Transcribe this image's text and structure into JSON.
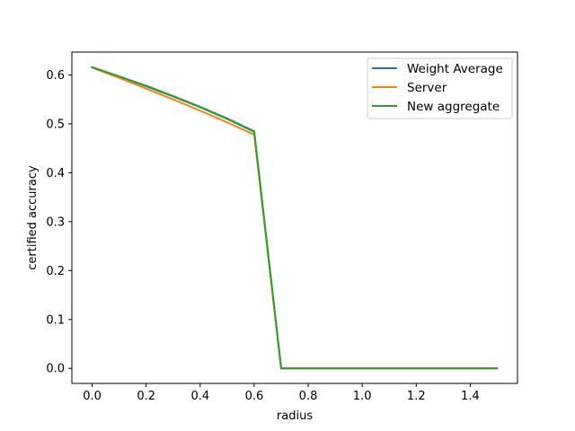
{
  "chart_data": {
    "type": "line",
    "title": "",
    "xlabel": "radius",
    "ylabel": "certified accuracy",
    "xlim": [
      -0.075,
      1.575
    ],
    "ylim": [
      -0.0308,
      0.6468
    ],
    "xticks": [
      0.0,
      0.2,
      0.4,
      0.6,
      0.8,
      1.0,
      1.2,
      1.4
    ],
    "xtick_labels": [
      "0.0",
      "0.2",
      "0.4",
      "0.6",
      "0.8",
      "1.0",
      "1.2",
      "1.4"
    ],
    "yticks": [
      0.0,
      0.1,
      0.2,
      0.3,
      0.4,
      0.5,
      0.6
    ],
    "ytick_labels": [
      "0.0",
      "0.1",
      "0.2",
      "0.3",
      "0.4",
      "0.5",
      "0.6"
    ],
    "grid": false,
    "legend_position": "top-right",
    "series": [
      {
        "name": "Weight Average",
        "color": "#1f77b4",
        "x": [
          0.0,
          0.1,
          0.2,
          0.3,
          0.4,
          0.5,
          0.6,
          0.7,
          0.8,
          0.9,
          1.0,
          1.1,
          1.2,
          1.3,
          1.4,
          1.5
        ],
        "y": [
          0.616,
          0.597,
          0.577,
          0.556,
          0.534,
          0.51,
          0.484,
          0.0,
          0.0,
          0.0,
          0.0,
          0.0,
          0.0,
          0.0,
          0.0,
          0.0
        ]
      },
      {
        "name": "Server",
        "color": "#ff7f0e",
        "x": [
          0.0,
          0.1,
          0.2,
          0.3,
          0.4,
          0.5,
          0.6,
          0.7,
          0.8,
          0.9,
          1.0,
          1.1,
          1.2,
          1.3,
          1.4,
          1.5
        ],
        "y": [
          0.615,
          0.594,
          0.572,
          0.55,
          0.527,
          0.503,
          0.478,
          0.0,
          0.0,
          0.0,
          0.0,
          0.0,
          0.0,
          0.0,
          0.0,
          0.0
        ]
      },
      {
        "name": "New aggregate",
        "color": "#2ca02c",
        "x": [
          0.0,
          0.1,
          0.2,
          0.3,
          0.4,
          0.5,
          0.6,
          0.7,
          0.8,
          0.9,
          1.0,
          1.1,
          1.2,
          1.3,
          1.4,
          1.5
        ],
        "y": [
          0.616,
          0.597,
          0.578,
          0.557,
          0.535,
          0.511,
          0.485,
          0.0,
          0.0,
          0.0,
          0.0,
          0.0,
          0.0,
          0.0,
          0.0,
          0.0
        ]
      }
    ]
  }
}
